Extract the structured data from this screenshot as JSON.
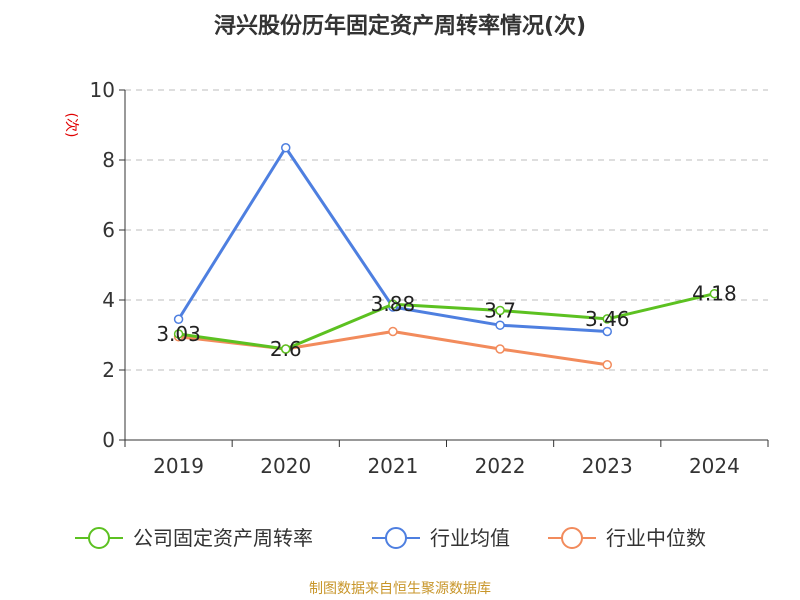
{
  "title": "浔兴股份历年固定资产周转率情况(次)",
  "source_note": "制图数据来自恒生聚源数据库",
  "colors": {
    "company": "#5cc121",
    "avg": "#4e7fe0",
    "median": "#f28b5c",
    "ylabel": "#e00000",
    "source": "#c8962a",
    "axis": "#333333",
    "grid": "#bdbdbd"
  },
  "chart_data": {
    "type": "line",
    "title": "浔兴股份历年固定资产周转率情况(次)",
    "ylabel": "(次)",
    "xlabel": "",
    "categories": [
      "2019",
      "2020",
      "2021",
      "2022",
      "2023",
      "2024"
    ],
    "ylim": [
      0,
      10
    ],
    "yticks": [
      0,
      2,
      4,
      6,
      8,
      10
    ],
    "grid": true,
    "legend_position": "bottom",
    "series": [
      {
        "name": "公司固定资产周转率",
        "key": "company",
        "values": [
          3.03,
          2.6,
          3.88,
          3.7,
          3.46,
          4.18
        ],
        "labels": [
          "3.03",
          "2.6",
          "3.88",
          "3.7",
          "3.46",
          "4.18"
        ]
      },
      {
        "name": "行业均值",
        "key": "avg",
        "values": [
          3.45,
          8.35,
          3.8,
          3.28,
          3.1,
          null
        ]
      },
      {
        "name": "行业中位数",
        "key": "median",
        "values": [
          2.95,
          2.6,
          3.1,
          2.6,
          2.15,
          null
        ]
      }
    ]
  }
}
